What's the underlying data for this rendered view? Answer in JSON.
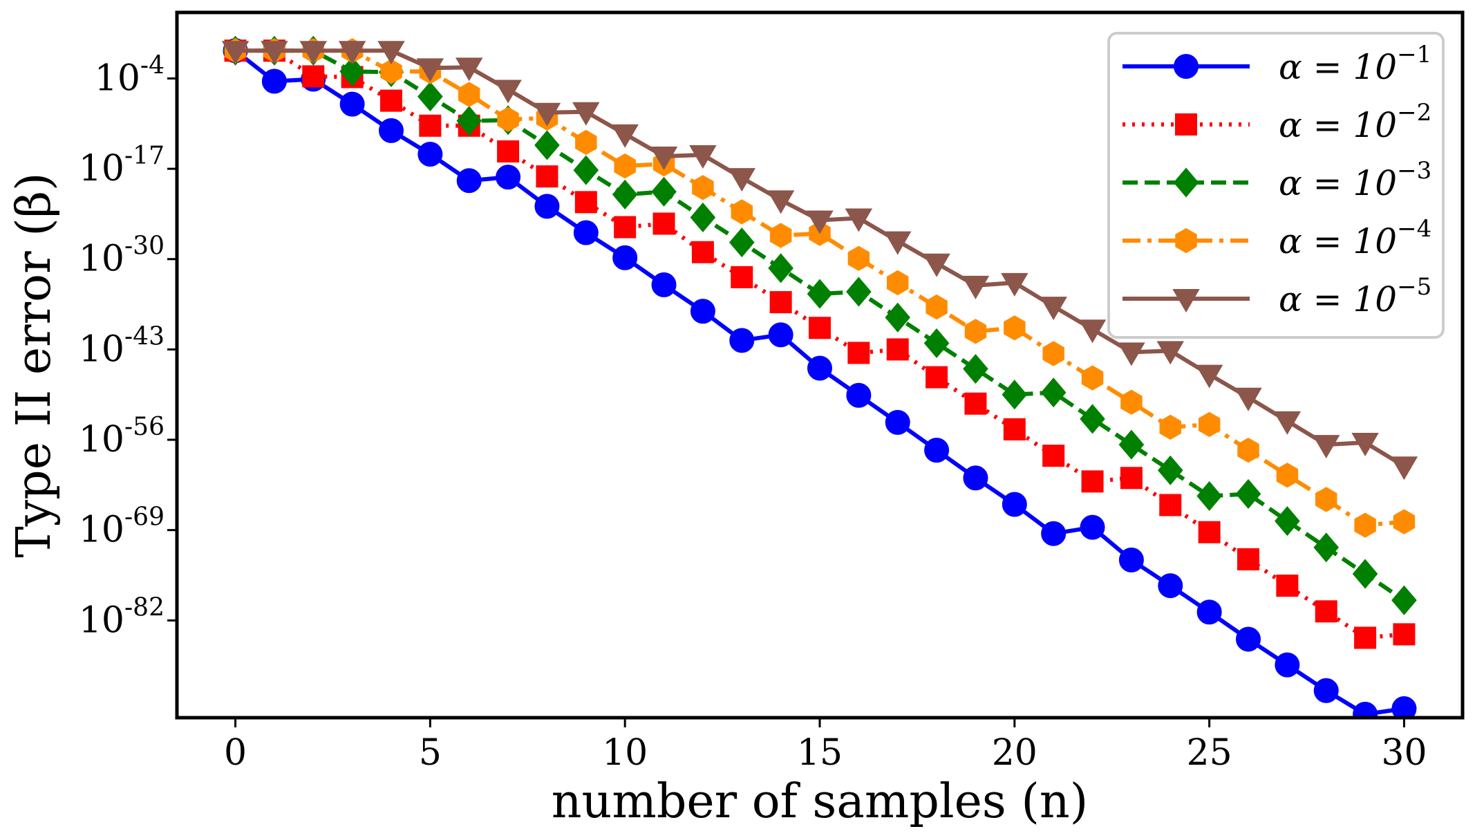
{
  "chart_data": {
    "type": "line",
    "title": "",
    "xlabel": "number of samples (n)",
    "ylabel": "Type II error (β)",
    "x_ticks": [
      0,
      5,
      10,
      15,
      20,
      25,
      30
    ],
    "x_tick_labels": [
      "0",
      "5",
      "10",
      "15",
      "20",
      "25",
      "30"
    ],
    "y_ticks": [
      -4,
      -17,
      -30,
      -43,
      -56,
      -69,
      -82
    ],
    "y_tick_labels": [
      {
        "base": "10",
        "exp": "-4"
      },
      {
        "base": "10",
        "exp": "-17"
      },
      {
        "base": "10",
        "exp": "-30"
      },
      {
        "base": "10",
        "exp": "-43"
      },
      {
        "base": "10",
        "exp": "-56"
      },
      {
        "base": "10",
        "exp": "-69"
      },
      {
        "base": "10",
        "exp": "-82"
      }
    ],
    "y_scale": "log",
    "xlim": [
      -1.5,
      31.5
    ],
    "ylim_log10": [
      -96,
      5.5
    ],
    "grid": false,
    "legend_position": "top-right",
    "x": [
      0,
      1,
      2,
      3,
      4,
      5,
      6,
      7,
      8,
      9,
      10,
      11,
      12,
      13,
      14,
      15,
      16,
      17,
      18,
      19,
      20,
      21,
      22,
      23,
      24,
      25,
      26,
      27,
      28,
      29,
      30
    ],
    "series": [
      {
        "name": "α=10⁻¹",
        "legend_base": "α = 10",
        "legend_exp": "−1",
        "color": "#0000ff",
        "marker": "circle",
        "dash": "solid",
        "log10_values": [
          0,
          -4.4,
          -4.1,
          -7.7,
          -11.5,
          -14.9,
          -18.7,
          -18.2,
          -22.4,
          -26.2,
          -29.8,
          -33.7,
          -37.5,
          -41.7,
          -40.9,
          -45.7,
          -49.6,
          -53.5,
          -57.5,
          -61.5,
          -65.3,
          -69.5,
          -68.6,
          -73.3,
          -77,
          -80.8,
          -84.7,
          -88.4,
          -92.1,
          -95.5,
          -94.7
        ]
      },
      {
        "name": "α=10⁻²",
        "legend_base": "α = 10",
        "legend_exp": "−2",
        "color": "#ff0000",
        "marker": "square",
        "dash": "dotted",
        "log10_values": [
          0,
          0,
          -3.7,
          -3.8,
          -7.2,
          -10.8,
          -10.8,
          -14.5,
          -18.1,
          -21.8,
          -25.4,
          -24.9,
          -29,
          -32.6,
          -36.2,
          -39.9,
          -43.5,
          -43,
          -47,
          -50.8,
          -54.5,
          -58.3,
          -62,
          -61.5,
          -65.4,
          -69.3,
          -73.2,
          -77,
          -80.7,
          -84.5,
          -84
        ]
      },
      {
        "name": "α=10⁻³",
        "legend_base": "α = 10",
        "legend_exp": "−3",
        "color": "#008000",
        "marker": "diamond",
        "dash": "dashed",
        "log10_values": [
          0,
          0,
          0,
          -3,
          -3.1,
          -6.6,
          -10.1,
          -10,
          -13.6,
          -17.2,
          -20.7,
          -20.3,
          -24,
          -27.6,
          -31.3,
          -35,
          -34.7,
          -38.4,
          -42.1,
          -45.8,
          -49.5,
          -49.2,
          -53,
          -56.7,
          -60.4,
          -64.1,
          -63.8,
          -67.7,
          -71.5,
          -75.3,
          -79.1
        ]
      },
      {
        "name": "α=10⁻⁴",
        "legend_base": "α = 10",
        "legend_exp": "−4",
        "color": "#ff8c00",
        "marker": "hexagon",
        "dash": "dashdot",
        "log10_values": [
          0,
          0,
          0,
          0,
          -3,
          -3,
          -6.3,
          -9.9,
          -9.7,
          -13.2,
          -16.6,
          -16.3,
          -19.7,
          -23.2,
          -26.6,
          -26.3,
          -29.9,
          -33.4,
          -36.9,
          -40.4,
          -39.9,
          -43.6,
          -47.1,
          -50.6,
          -54.2,
          -53.8,
          -57.5,
          -61.1,
          -64.6,
          -68.3,
          -67.8
        ]
      },
      {
        "name": "α=10⁻⁵",
        "legend_base": "α = 10",
        "legend_exp": "−5",
        "color": "#8c564b",
        "marker": "triangle-down",
        "dash": "solid",
        "log10_values": [
          0,
          0,
          0,
          0,
          0,
          -2.5,
          -2.4,
          -5.6,
          -8.9,
          -8.8,
          -12,
          -15.2,
          -15,
          -18.3,
          -21.5,
          -24.4,
          -24.1,
          -27.4,
          -30.6,
          -33.8,
          -33.4,
          -36.8,
          -40.1,
          -43.4,
          -43.2,
          -46.6,
          -49.9,
          -53.3,
          -56.7,
          -56.4,
          -59.8
        ]
      }
    ]
  }
}
